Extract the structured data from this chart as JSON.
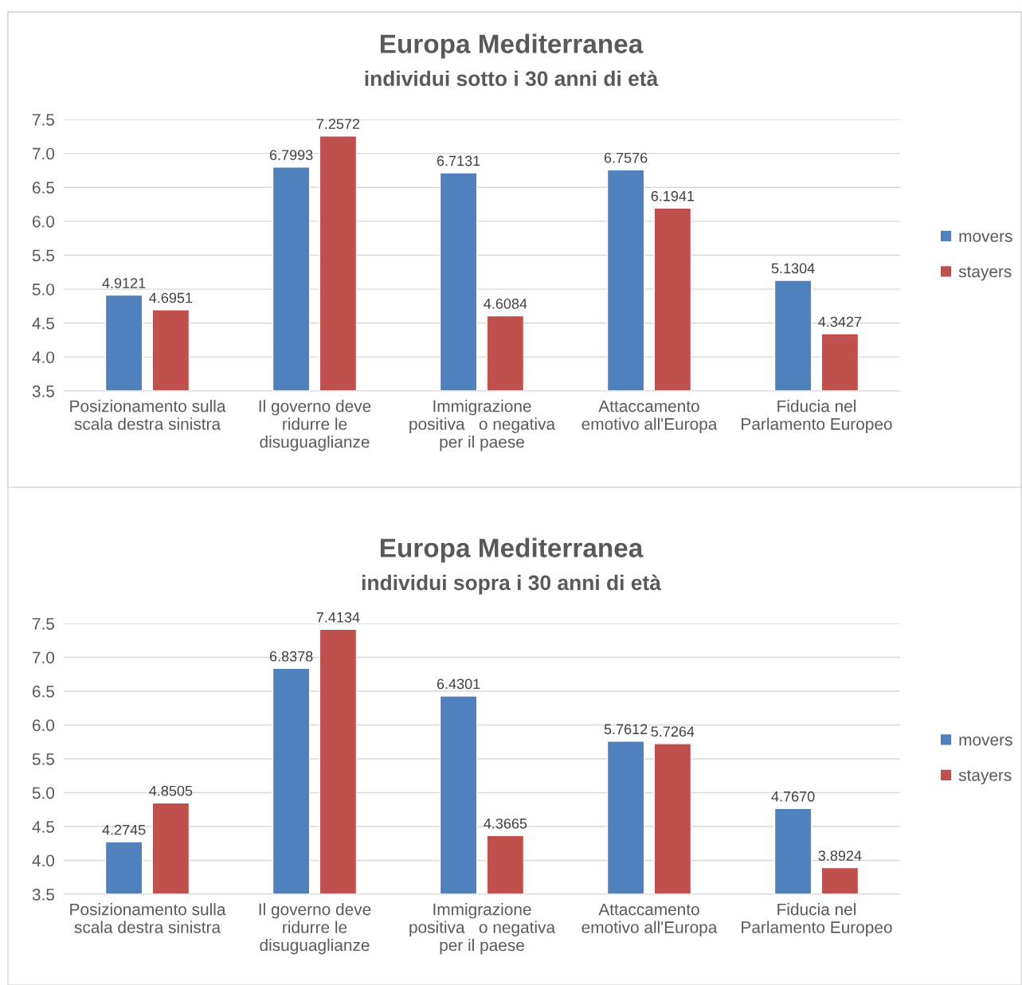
{
  "chart_data": [
    {
      "type": "bar",
      "title": "Europa Mediterranea",
      "subtitle": "individui sotto i 30 anni di età",
      "categories": [
        "Posizionamento sulla\nscala destra sinistra",
        "Il governo deve\nridurre le\ndisuguaglianze",
        "Immigrazione\npositiva   o negativa\nper il paese",
        "Attaccamento\nemotivo all'Europa",
        "Fiducia nel\nParlamento Europeo"
      ],
      "series": [
        {
          "name": "movers",
          "color": "#4f81bd",
          "values": [
            4.9121,
            6.7993,
            6.7131,
            6.7576,
            5.1304
          ],
          "value_labels": [
            "4.9121",
            "6.7993",
            "6.7131",
            "6.7576",
            "5.1304"
          ]
        },
        {
          "name": "stayers",
          "color": "#c0504d",
          "values": [
            4.6951,
            7.2572,
            4.6084,
            6.1941,
            4.3427
          ],
          "value_labels": [
            "4.6951",
            "7.2572",
            "4.6084",
            "6.1941",
            "4.3427"
          ]
        }
      ],
      "ylim": [
        3.5,
        7.5
      ],
      "yticks": [
        3.5,
        {
          "value": 4,
          "label": "4.0"
        },
        4.5,
        {
          "value": 5,
          "label": "5.0"
        },
        5.5,
        {
          "value": 6,
          "label": "6.0"
        },
        6.5,
        {
          "value": 7,
          "label": "7.0"
        },
        7.5
      ],
      "grid": "y",
      "legend": "right"
    },
    {
      "type": "bar",
      "title": "Europa Mediterranea",
      "subtitle": "individui sopra i 30 anni di età",
      "categories": [
        "Posizionamento sulla\nscala destra sinistra",
        "Il governo deve\nridurre le\ndisuguaglianze",
        "Immigrazione\npositiva   o negativa\nper il paese",
        "Attaccamento\nemotivo all'Europa",
        "Fiducia nel\nParlamento Europeo"
      ],
      "series": [
        {
          "name": "movers",
          "color": "#4f81bd",
          "values": [
            4.2745,
            6.8378,
            6.4301,
            5.7612,
            4.767
          ],
          "value_labels": [
            "4.2745",
            "6.8378",
            "6.4301",
            "5.7612",
            "4.7670"
          ]
        },
        {
          "name": "stayers",
          "color": "#c0504d",
          "values": [
            4.8505,
            7.4134,
            4.3665,
            5.7264,
            3.8924
          ],
          "value_labels": [
            "4.8505",
            "7.4134",
            "4.3665",
            "5.7264",
            "3.8924"
          ]
        }
      ],
      "ylim": [
        3.5,
        7.5
      ],
      "yticks": [
        3.5,
        {
          "value": 4,
          "label": "4.0"
        },
        4.5,
        {
          "value": 5,
          "label": "5.0"
        },
        5.5,
        {
          "value": 6,
          "label": "6.0"
        },
        6.5,
        {
          "value": 7,
          "label": "7.0"
        },
        7.5
      ],
      "grid": "y",
      "legend": "right"
    }
  ]
}
